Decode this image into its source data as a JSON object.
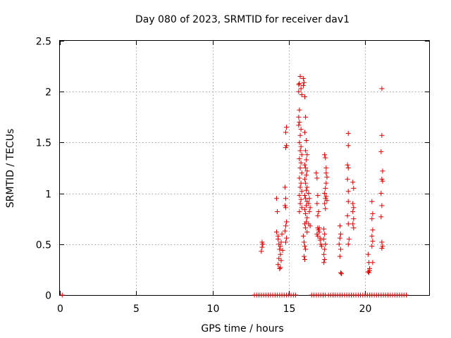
{
  "chart_data": {
    "type": "scatter",
    "title": "Day 080 of 2023, SRMTID for receiver dav1",
    "xlabel": "GPS time / hours",
    "ylabel": "SRMTID / TECUs",
    "xlim": [
      0,
      24.2
    ],
    "ylim": [
      0,
      2.5
    ],
    "xticks": [
      0,
      5,
      10,
      15,
      20
    ],
    "xtick_labels": [
      "0",
      "5",
      "10",
      "15",
      "20"
    ],
    "yticks": [
      0,
      0.5,
      1,
      1.5,
      2,
      2.5
    ],
    "ytick_labels": [
      "0",
      "0.5",
      "1",
      "1.5",
      "2",
      "2.5"
    ],
    "grid": true,
    "color": "#e00000",
    "marker": "plus",
    "series": [
      {
        "name": "SRMTID",
        "points": [
          [
            0.15,
            0.0
          ],
          [
            13.25,
            0.52
          ],
          [
            13.25,
            0.47
          ],
          [
            13.2,
            0.43
          ],
          [
            13.3,
            0.5
          ],
          [
            14.2,
            0.95
          ],
          [
            14.25,
            0.82
          ],
          [
            14.2,
            0.62
          ],
          [
            14.3,
            0.58
          ],
          [
            14.3,
            0.55
          ],
          [
            14.35,
            0.5
          ],
          [
            14.4,
            0.45
          ],
          [
            14.45,
            0.4
          ],
          [
            14.35,
            0.36
          ],
          [
            14.5,
            0.34
          ],
          [
            14.3,
            0.3
          ],
          [
            14.45,
            0.27
          ],
          [
            14.55,
            0.6
          ],
          [
            14.5,
            0.52
          ],
          [
            14.45,
            0.48
          ],
          [
            14.6,
            0.44
          ],
          [
            14.4,
            0.26
          ],
          [
            14.85,
            1.65
          ],
          [
            14.8,
            1.6
          ],
          [
            14.85,
            1.47
          ],
          [
            14.8,
            1.45
          ],
          [
            14.75,
            1.06
          ],
          [
            14.8,
            0.95
          ],
          [
            14.75,
            0.88
          ],
          [
            14.8,
            0.86
          ],
          [
            14.85,
            0.72
          ],
          [
            14.8,
            0.68
          ],
          [
            14.75,
            0.63
          ],
          [
            14.85,
            0.56
          ],
          [
            14.8,
            0.52
          ],
          [
            15.65,
            2.07
          ],
          [
            15.7,
            2.08
          ],
          [
            15.75,
            2.15
          ],
          [
            15.65,
            2.0
          ],
          [
            15.8,
            2.03
          ],
          [
            15.85,
            1.97
          ],
          [
            15.7,
            1.82
          ],
          [
            15.65,
            1.75
          ],
          [
            15.7,
            1.7
          ],
          [
            15.65,
            1.67
          ],
          [
            15.8,
            1.63
          ],
          [
            15.75,
            1.57
          ],
          [
            15.7,
            1.5
          ],
          [
            15.8,
            1.46
          ],
          [
            15.75,
            1.42
          ],
          [
            15.85,
            1.38
          ],
          [
            15.7,
            1.34
          ],
          [
            15.8,
            1.3
          ],
          [
            15.75,
            1.25
          ],
          [
            15.85,
            1.2
          ],
          [
            15.7,
            1.15
          ],
          [
            15.8,
            1.1
          ],
          [
            15.75,
            1.06
          ],
          [
            15.85,
            1.02
          ],
          [
            15.7,
            0.98
          ],
          [
            15.8,
            0.94
          ],
          [
            15.75,
            0.9
          ],
          [
            15.85,
            0.86
          ],
          [
            15.7,
            0.82
          ],
          [
            15.95,
            2.13
          ],
          [
            16.0,
            2.09
          ],
          [
            15.95,
            2.06
          ],
          [
            16.05,
            1.95
          ],
          [
            16.1,
            1.75
          ],
          [
            16.05,
            1.6
          ],
          [
            16.15,
            1.52
          ],
          [
            16.1,
            1.42
          ],
          [
            16.2,
            1.38
          ],
          [
            16.15,
            1.33
          ],
          [
            16.05,
            1.28
          ],
          [
            16.1,
            1.25
          ],
          [
            16.2,
            1.22
          ],
          [
            16.15,
            1.18
          ],
          [
            16.05,
            1.14
          ],
          [
            16.1,
            1.1
          ],
          [
            16.2,
            1.06
          ],
          [
            16.15,
            1.03
          ],
          [
            16.05,
            0.98
          ],
          [
            16.1,
            0.95
          ],
          [
            16.2,
            0.92
          ],
          [
            16.15,
            0.88
          ],
          [
            16.05,
            0.84
          ],
          [
            16.1,
            0.8
          ],
          [
            16.2,
            0.76
          ],
          [
            16.15,
            0.72
          ],
          [
            16.05,
            0.7
          ],
          [
            16.1,
            0.66
          ],
          [
            16.2,
            0.62
          ],
          [
            15.95,
            0.58
          ],
          [
            16.0,
            0.52
          ],
          [
            16.05,
            0.48
          ],
          [
            16.1,
            0.45
          ],
          [
            16.0,
            0.38
          ],
          [
            16.05,
            0.35
          ],
          [
            16.3,
            1.0
          ],
          [
            16.35,
            0.95
          ],
          [
            16.3,
            0.9
          ],
          [
            16.4,
            0.86
          ],
          [
            16.35,
            0.82
          ],
          [
            16.3,
            0.7
          ],
          [
            16.4,
            0.68
          ],
          [
            16.8,
            1.2
          ],
          [
            16.85,
            1.15
          ],
          [
            16.9,
            0.98
          ],
          [
            16.85,
            0.9
          ],
          [
            16.95,
            0.82
          ],
          [
            16.9,
            0.78
          ],
          [
            16.9,
            0.66
          ],
          [
            16.95,
            0.64
          ],
          [
            17.0,
            0.62
          ],
          [
            16.85,
            0.6
          ],
          [
            16.9,
            0.58
          ],
          [
            17.05,
            0.56
          ],
          [
            17.05,
            0.54
          ],
          [
            17.0,
            0.66
          ],
          [
            17.1,
            0.5
          ],
          [
            17.15,
            0.48
          ],
          [
            17.35,
            1.38
          ],
          [
            17.4,
            1.35
          ],
          [
            17.45,
            1.25
          ],
          [
            17.45,
            1.2
          ],
          [
            17.5,
            1.16
          ],
          [
            17.45,
            1.1
          ],
          [
            17.4,
            1.05
          ],
          [
            17.35,
            1.0
          ],
          [
            17.45,
            0.97
          ],
          [
            17.4,
            0.95
          ],
          [
            17.5,
            0.93
          ],
          [
            17.35,
            0.9
          ],
          [
            17.4,
            0.85
          ],
          [
            17.3,
            0.65
          ],
          [
            17.35,
            0.6
          ],
          [
            17.3,
            0.55
          ],
          [
            17.4,
            0.5
          ],
          [
            17.35,
            0.45
          ],
          [
            17.3,
            0.4
          ],
          [
            17.35,
            0.35
          ],
          [
            17.3,
            0.32
          ],
          [
            18.35,
            0.68
          ],
          [
            18.4,
            0.6
          ],
          [
            18.35,
            0.56
          ],
          [
            18.3,
            0.5
          ],
          [
            18.4,
            0.45
          ],
          [
            18.35,
            0.38
          ],
          [
            18.4,
            0.22
          ],
          [
            18.45,
            0.21
          ],
          [
            18.9,
            1.59
          ],
          [
            18.9,
            1.47
          ],
          [
            18.85,
            1.28
          ],
          [
            18.9,
            1.25
          ],
          [
            18.85,
            1.14
          ],
          [
            18.9,
            1.02
          ],
          [
            18.9,
            0.92
          ],
          [
            18.85,
            0.78
          ],
          [
            18.9,
            0.7
          ],
          [
            18.95,
            0.55
          ],
          [
            18.9,
            0.5
          ],
          [
            19.2,
            1.11
          ],
          [
            19.25,
            1.05
          ],
          [
            19.2,
            0.9
          ],
          [
            19.25,
            0.86
          ],
          [
            19.2,
            0.82
          ],
          [
            19.25,
            0.75
          ],
          [
            19.2,
            0.7
          ],
          [
            19.25,
            0.66
          ],
          [
            20.2,
            0.4
          ],
          [
            20.25,
            0.32
          ],
          [
            20.3,
            0.26
          ],
          [
            20.2,
            0.23
          ],
          [
            20.25,
            0.22
          ],
          [
            20.3,
            0.24
          ],
          [
            20.45,
            0.92
          ],
          [
            20.5,
            0.8
          ],
          [
            20.45,
            0.75
          ],
          [
            20.5,
            0.64
          ],
          [
            20.45,
            0.58
          ],
          [
            20.5,
            0.53
          ],
          [
            20.45,
            0.48
          ],
          [
            20.5,
            0.32
          ],
          [
            21.1,
            2.03
          ],
          [
            21.1,
            1.57
          ],
          [
            21.05,
            1.41
          ],
          [
            21.15,
            1.22
          ],
          [
            21.1,
            1.14
          ],
          [
            21.15,
            1.12
          ],
          [
            21.05,
            1.0
          ],
          [
            21.1,
            0.88
          ],
          [
            21.05,
            0.77
          ],
          [
            21.1,
            0.52
          ],
          [
            21.15,
            0.48
          ],
          [
            21.1,
            0.46
          ]
        ]
      }
    ],
    "zero_band": {
      "y": 0,
      "x": [
        12.75,
        12.9,
        13.05,
        13.2,
        13.35,
        13.5,
        13.65,
        13.8,
        13.95,
        14.1,
        14.25,
        14.4,
        14.55,
        14.7,
        14.85,
        15.0,
        15.15,
        15.3,
        15.45,
        16.5,
        16.65,
        16.8,
        16.95,
        17.1,
        17.25,
        17.4,
        17.6,
        17.75,
        17.9,
        18.05,
        18.2,
        18.35,
        18.5,
        18.65,
        18.8,
        18.95,
        19.1,
        19.25,
        19.4,
        19.55,
        19.7,
        19.85,
        20.0,
        20.15,
        20.3,
        20.45,
        20.6,
        20.75,
        20.9,
        21.05,
        21.2,
        21.35,
        21.5,
        21.65,
        21.8,
        21.95,
        22.1,
        22.25,
        22.4,
        22.55,
        22.7
      ]
    }
  }
}
